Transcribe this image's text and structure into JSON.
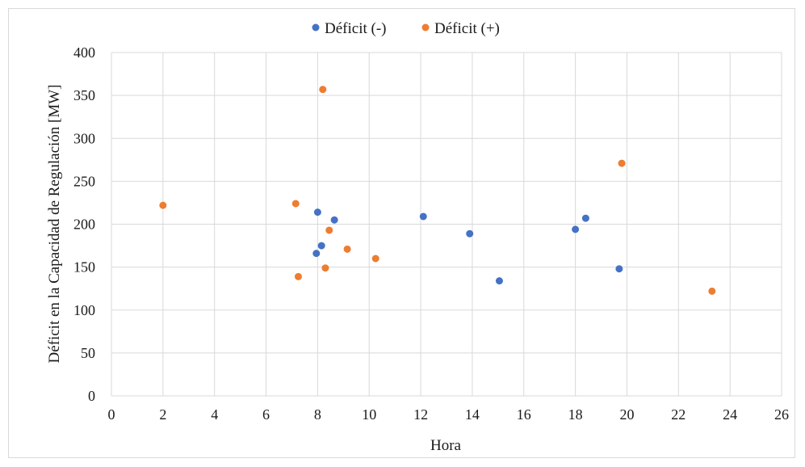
{
  "chart_data": {
    "type": "scatter",
    "xlabel": "Hora",
    "ylabel": "Déficit en la Capacidad de Regulación  [MW]",
    "xlim": [
      0,
      26
    ],
    "ylim": [
      0,
      400
    ],
    "xticks": [
      0,
      2,
      4,
      6,
      8,
      10,
      12,
      14,
      16,
      18,
      20,
      22,
      24,
      26
    ],
    "yticks": [
      0,
      50,
      100,
      150,
      200,
      250,
      300,
      350,
      400
    ],
    "grid": true,
    "legend": "top",
    "series": [
      {
        "name": "Déficit (-)",
        "color": "#4472c4",
        "points": [
          [
            7.95,
            166
          ],
          [
            8.0,
            214
          ],
          [
            8.15,
            175
          ],
          [
            8.65,
            205
          ],
          [
            12.1,
            209
          ],
          [
            13.9,
            189
          ],
          [
            15.05,
            134
          ],
          [
            18.0,
            194
          ],
          [
            18.4,
            207
          ],
          [
            19.7,
            148
          ]
        ]
      },
      {
        "name": "Déficit (+)",
        "color": "#ed7d31",
        "points": [
          [
            2.0,
            222
          ],
          [
            7.15,
            224
          ],
          [
            7.25,
            139
          ],
          [
            8.2,
            357
          ],
          [
            8.3,
            149
          ],
          [
            8.45,
            193
          ],
          [
            9.15,
            171
          ],
          [
            10.25,
            160
          ],
          [
            19.8,
            271
          ],
          [
            23.3,
            122
          ]
        ]
      }
    ]
  }
}
